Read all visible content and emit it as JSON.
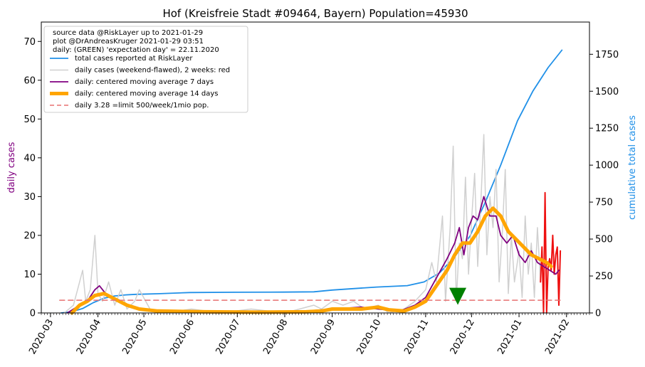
{
  "chart_data": {
    "type": "line",
    "title": "Hof (Kreisfreie Stadt #09464, Bayern) Population=45930",
    "ylabel_left": "daily cases",
    "ylabel_right": "cumulative total cases",
    "ylim_left": [
      0,
      75
    ],
    "ylim_right": [
      0,
      1968
    ],
    "xlim": [
      "2020-02-24",
      "2021-02-16"
    ],
    "x_ticks": [
      "2020-03",
      "2020-04",
      "2020-05",
      "2020-06",
      "2020-07",
      "2020-08",
      "2020-09",
      "2020-10",
      "2020-11",
      "2020-12",
      "2021-01",
      "2021-02"
    ],
    "y_ticks_left": [
      0,
      10,
      20,
      30,
      40,
      50,
      60,
      70
    ],
    "y_ticks_right": [
      0,
      250,
      500,
      750,
      1000,
      1250,
      1500,
      1750
    ],
    "grid": false,
    "legend_position": "top-left",
    "legend_info": [
      "source data @RiskLayer up to 2021-01-29",
      "plot @DrAndreasKruger 2021-01-29 03:51",
      "daily: (GREEN) 'expectation day' = 22.11.2020"
    ],
    "colors": {
      "total": "#2090e8",
      "daily_raw": "#d0d0d0",
      "daily_recent": "#ee1111",
      "ma7": "#800080",
      "ma14": "#ffa500",
      "limit": "#e87070",
      "marker": "#008000",
      "ylabel_left": "#800080",
      "ylabel_right": "#2090e8"
    },
    "series": [
      {
        "name": "total cases reported at RiskLayer",
        "axis": "right",
        "color": "#2090e8",
        "points": [
          [
            "2020-03-08",
            0
          ],
          [
            "2020-03-15",
            8
          ],
          [
            "2020-03-22",
            30
          ],
          [
            "2020-03-29",
            70
          ],
          [
            "2020-04-05",
            100
          ],
          [
            "2020-04-12",
            115
          ],
          [
            "2020-04-19",
            122
          ],
          [
            "2020-04-26",
            126
          ],
          [
            "2020-05-10",
            130
          ],
          [
            "2020-05-31",
            138
          ],
          [
            "2020-06-30",
            140
          ],
          [
            "2020-07-31",
            141
          ],
          [
            "2020-08-20",
            143
          ],
          [
            "2020-09-01",
            155
          ],
          [
            "2020-09-30",
            175
          ],
          [
            "2020-10-10",
            180
          ],
          [
            "2020-10-20",
            185
          ],
          [
            "2020-10-31",
            210
          ],
          [
            "2020-11-10",
            270
          ],
          [
            "2020-11-20",
            380
          ],
          [
            "2020-11-30",
            520
          ],
          [
            "2020-12-10",
            750
          ],
          [
            "2020-12-20",
            1000
          ],
          [
            "2020-12-31",
            1300
          ],
          [
            "2021-01-10",
            1500
          ],
          [
            "2021-01-20",
            1660
          ],
          [
            "2021-01-29",
            1778
          ]
        ]
      },
      {
        "name": "daily cases (weekend-flawed), 2 weeks: red",
        "axis": "left",
        "color": "#d0d0d0",
        "points": [
          [
            "2020-03-10",
            0
          ],
          [
            "2020-03-16",
            2
          ],
          [
            "2020-03-20",
            8
          ],
          [
            "2020-03-22",
            11
          ],
          [
            "2020-03-24",
            3
          ],
          [
            "2020-03-27",
            6
          ],
          [
            "2020-03-30",
            20
          ],
          [
            "2020-04-01",
            5
          ],
          [
            "2020-04-04",
            3
          ],
          [
            "2020-04-08",
            8
          ],
          [
            "2020-04-12",
            2
          ],
          [
            "2020-04-16",
            6
          ],
          [
            "2020-04-20",
            1
          ],
          [
            "2020-04-25",
            3
          ],
          [
            "2020-04-28",
            6
          ],
          [
            "2020-05-05",
            1
          ],
          [
            "2020-05-15",
            0
          ],
          [
            "2020-06-01",
            1
          ],
          [
            "2020-06-20",
            0
          ],
          [
            "2020-07-10",
            1
          ],
          [
            "2020-08-01",
            0
          ],
          [
            "2020-08-20",
            2
          ],
          [
            "2020-08-25",
            1
          ],
          [
            "2020-09-01",
            3
          ],
          [
            "2020-09-08",
            2
          ],
          [
            "2020-09-15",
            3
          ],
          [
            "2020-09-22",
            1
          ],
          [
            "2020-10-01",
            2
          ],
          [
            "2020-10-08",
            0
          ],
          [
            "2020-10-18",
            1
          ],
          [
            "2020-10-25",
            3
          ],
          [
            "2020-11-01",
            6
          ],
          [
            "2020-11-05",
            13
          ],
          [
            "2020-11-08",
            8
          ],
          [
            "2020-11-12",
            25
          ],
          [
            "2020-11-14",
            3
          ],
          [
            "2020-11-17",
            22
          ],
          [
            "2020-11-19",
            43
          ],
          [
            "2020-11-21",
            3
          ],
          [
            "2020-11-23",
            18
          ],
          [
            "2020-11-25",
            14
          ],
          [
            "2020-11-27",
            35
          ],
          [
            "2020-11-29",
            10
          ],
          [
            "2020-12-01",
            24
          ],
          [
            "2020-12-03",
            36
          ],
          [
            "2020-12-05",
            12
          ],
          [
            "2020-12-07",
            28
          ],
          [
            "2020-12-09",
            46
          ],
          [
            "2020-12-11",
            15
          ],
          [
            "2020-12-13",
            30
          ],
          [
            "2020-12-15",
            22
          ],
          [
            "2020-12-17",
            37
          ],
          [
            "2020-12-19",
            8
          ],
          [
            "2020-12-21",
            20
          ],
          [
            "2020-12-23",
            37
          ],
          [
            "2020-12-25",
            5
          ],
          [
            "2020-12-27",
            20
          ],
          [
            "2020-12-29",
            8
          ],
          [
            "2021-01-01",
            16
          ],
          [
            "2021-01-03",
            4
          ],
          [
            "2021-01-05",
            25
          ],
          [
            "2021-01-07",
            10
          ],
          [
            "2021-01-09",
            18
          ],
          [
            "2021-01-11",
            4
          ],
          [
            "2021-01-13",
            22
          ],
          [
            "2021-01-15",
            8
          ]
        ]
      },
      {
        "name": "daily cases (weekend-flawed), 2 weeks: red",
        "legend": false,
        "axis": "left",
        "color": "#ee1111",
        "points": [
          [
            "2021-01-15",
            8
          ],
          [
            "2021-01-16",
            17
          ],
          [
            "2021-01-17",
            0
          ],
          [
            "2021-01-18",
            31
          ],
          [
            "2021-01-19",
            0
          ],
          [
            "2021-01-20",
            12
          ],
          [
            "2021-01-21",
            14
          ],
          [
            "2021-01-22",
            11
          ],
          [
            "2021-01-23",
            20
          ],
          [
            "2021-01-24",
            10
          ],
          [
            "2021-01-25",
            15
          ],
          [
            "2021-01-26",
            17
          ],
          [
            "2021-01-27",
            2
          ],
          [
            "2021-01-28",
            16
          ]
        ]
      },
      {
        "name": "daily: centered moving average 7 days",
        "axis": "left",
        "color": "#800080",
        "points": [
          [
            "2020-03-12",
            0
          ],
          [
            "2020-03-20",
            2
          ],
          [
            "2020-03-25",
            3
          ],
          [
            "2020-03-30",
            6
          ],
          [
            "2020-04-02",
            7
          ],
          [
            "2020-04-06",
            5
          ],
          [
            "2020-04-10",
            4
          ],
          [
            "2020-04-15",
            3
          ],
          [
            "2020-04-20",
            2
          ],
          [
            "2020-04-27",
            1
          ],
          [
            "2020-05-10",
            0.5
          ],
          [
            "2020-06-10",
            0.3
          ],
          [
            "2020-07-15",
            0.3
          ],
          [
            "2020-08-15",
            0.5
          ],
          [
            "2020-09-01",
            1
          ],
          [
            "2020-09-20",
            1.5
          ],
          [
            "2020-10-01",
            1
          ],
          [
            "2020-10-15",
            0.5
          ],
          [
            "2020-10-25",
            2
          ],
          [
            "2020-11-01",
            4
          ],
          [
            "2020-11-08",
            9
          ],
          [
            "2020-11-15",
            14
          ],
          [
            "2020-11-20",
            18
          ],
          [
            "2020-11-23",
            22
          ],
          [
            "2020-11-26",
            15
          ],
          [
            "2020-11-29",
            22
          ],
          [
            "2020-12-02",
            25
          ],
          [
            "2020-12-05",
            24
          ],
          [
            "2020-12-09",
            30
          ],
          [
            "2020-12-13",
            25
          ],
          [
            "2020-12-17",
            25
          ],
          [
            "2020-12-20",
            20
          ],
          [
            "2020-12-24",
            18
          ],
          [
            "2020-12-28",
            20
          ],
          [
            "2021-01-01",
            15
          ],
          [
            "2021-01-05",
            13
          ],
          [
            "2021-01-09",
            16
          ],
          [
            "2021-01-13",
            13
          ],
          [
            "2021-01-17",
            12
          ],
          [
            "2021-01-21",
            11
          ],
          [
            "2021-01-25",
            10
          ],
          [
            "2021-01-27",
            11
          ]
        ]
      },
      {
        "name": "daily: centered moving average 14 days",
        "axis": "left",
        "color": "#ffa500",
        "points": [
          [
            "2020-03-15",
            0
          ],
          [
            "2020-03-20",
            2
          ],
          [
            "2020-03-25",
            3
          ],
          [
            "2020-03-30",
            4.5
          ],
          [
            "2020-04-05",
            5
          ],
          [
            "2020-04-10",
            4
          ],
          [
            "2020-04-15",
            3
          ],
          [
            "2020-04-20",
            2
          ],
          [
            "2020-04-28",
            1
          ],
          [
            "2020-05-10",
            0.5
          ],
          [
            "2020-06-10",
            0.3
          ],
          [
            "2020-07-15",
            0.2
          ],
          [
            "2020-08-15",
            0.3
          ],
          [
            "2020-08-25",
            0.5
          ],
          [
            "2020-09-01",
            1
          ],
          [
            "2020-09-20",
            1
          ],
          [
            "2020-10-01",
            1.5
          ],
          [
            "2020-10-08",
            0.8
          ],
          [
            "2020-10-18",
            0.5
          ],
          [
            "2020-10-25",
            1.5
          ],
          [
            "2020-11-01",
            3
          ],
          [
            "2020-11-08",
            7
          ],
          [
            "2020-11-15",
            11
          ],
          [
            "2020-11-20",
            15
          ],
          [
            "2020-11-25",
            18
          ],
          [
            "2020-11-30",
            18
          ],
          [
            "2020-12-05",
            21
          ],
          [
            "2020-12-10",
            25
          ],
          [
            "2020-12-15",
            27
          ],
          [
            "2020-12-20",
            25
          ],
          [
            "2020-12-25",
            21
          ],
          [
            "2020-12-30",
            19
          ],
          [
            "2021-01-04",
            17
          ],
          [
            "2021-01-09",
            15
          ],
          [
            "2021-01-14",
            14
          ],
          [
            "2021-01-19",
            13
          ],
          [
            "2021-01-22",
            12
          ]
        ]
      },
      {
        "name": "daily 3.28 =limit 500/week/1mio pop.",
        "axis": "left",
        "color": "#e87070",
        "dashed": true,
        "points": [
          [
            "2020-03-07",
            3.28
          ],
          [
            "2021-01-29",
            3.28
          ]
        ]
      }
    ],
    "marker": {
      "x": "2020-11-22",
      "y": 3,
      "shape": "triangle-down",
      "color": "#008000"
    }
  }
}
